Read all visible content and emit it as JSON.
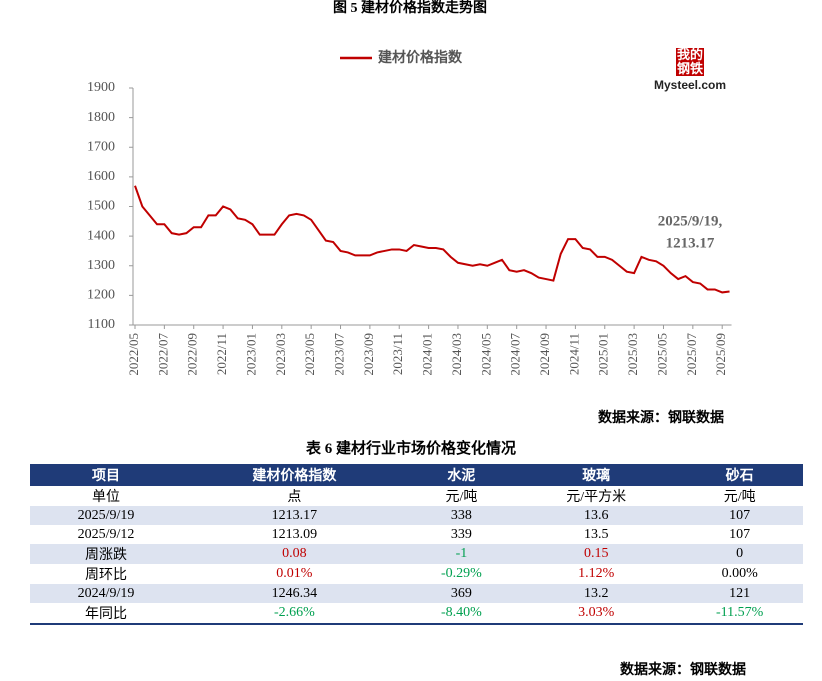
{
  "figure_title": "图 5  建材价格指数走势图",
  "logo": {
    "mark": "我的钢铁",
    "name": "Mysteel.com"
  },
  "chart_data": {
    "type": "line",
    "series": [
      {
        "name": "建材价格指数",
        "color": "#c00000",
        "values": [
          1570,
          1500,
          1470,
          1440,
          1440,
          1410,
          1405,
          1410,
          1430,
          1430,
          1470,
          1470,
          1500,
          1490,
          1460,
          1455,
          1440,
          1405,
          1405,
          1405,
          1440,
          1470,
          1475,
          1470,
          1455,
          1420,
          1385,
          1380,
          1350,
          1345,
          1335,
          1335,
          1335,
          1345,
          1350,
          1355,
          1355,
          1350,
          1370,
          1365,
          1360,
          1360,
          1355,
          1330,
          1310,
          1305,
          1300,
          1305,
          1300,
          1310,
          1320,
          1285,
          1280,
          1285,
          1275,
          1260,
          1255,
          1250,
          1340,
          1390,
          1390,
          1360,
          1355,
          1330,
          1330,
          1320,
          1300,
          1280,
          1275,
          1330,
          1320,
          1315,
          1300,
          1275,
          1255,
          1265,
          1245,
          1240,
          1220,
          1220,
          1210,
          1213.17
        ]
      }
    ],
    "categories": [
      "2022/05",
      null,
      null,
      null,
      "2022/07",
      null,
      null,
      null,
      "2022/09",
      null,
      null,
      null,
      "2022/11",
      null,
      null,
      null,
      "2023/01",
      null,
      null,
      null,
      "2023/03",
      null,
      null,
      null,
      "2023/05",
      null,
      null,
      null,
      "2023/07",
      null,
      null,
      null,
      "2023/09",
      null,
      null,
      null,
      "2023/11",
      null,
      null,
      null,
      "2024/01",
      null,
      null,
      null,
      "2024/03",
      null,
      null,
      null,
      "2024/05",
      null,
      null,
      null,
      "2024/07",
      null,
      null,
      null,
      "2024/09",
      null,
      null,
      null,
      "2024/11",
      null,
      null,
      null,
      "2025/01",
      null,
      null,
      null,
      "2025/03",
      null,
      null,
      null,
      "2025/05",
      null,
      null,
      null,
      "2025/07",
      null,
      null,
      null,
      "2025/09",
      null
    ],
    "ylim": [
      1100,
      1900
    ],
    "yticks": [
      1100,
      1200,
      1300,
      1400,
      1500,
      1600,
      1700,
      1800,
      1900
    ],
    "grid": false,
    "legend": "top",
    "annotation": [
      "2025/9/19,",
      "1213.17"
    ]
  },
  "source": "数据来源：钢联数据",
  "table": {
    "title": "表 6 建材行业市场价格变化情况",
    "header": [
      "项目",
      "建材价格指数",
      "水泥",
      "玻璃",
      "砂石"
    ],
    "rows": [
      [
        "单位",
        "点",
        "元/吨",
        "元/平方米",
        "元/吨"
      ],
      [
        "2025/9/19",
        "1213.17",
        "338",
        "13.6",
        "107"
      ],
      [
        "2025/9/12",
        "1213.09",
        "339",
        "13.5",
        "107"
      ],
      [
        "周涨跌",
        "0.08",
        "-1",
        "0.15",
        "0"
      ],
      [
        "周环比",
        "0.01%",
        "-0.29%",
        "1.12%",
        "0.00%"
      ],
      [
        "2024/9/19",
        "1246.34",
        "369",
        "13.2",
        "121"
      ],
      [
        "年同比",
        "-2.66%",
        "-8.40%",
        "3.03%",
        "-11.57%"
      ]
    ],
    "signed_rows": [
      3,
      4,
      6
    ],
    "up_color": "#c00000",
    "down_color": "#00a050",
    "header_color": "#1f3b78",
    "stripe_color": "#dde3f0"
  },
  "footer_source": "数据来源：钢联数据"
}
